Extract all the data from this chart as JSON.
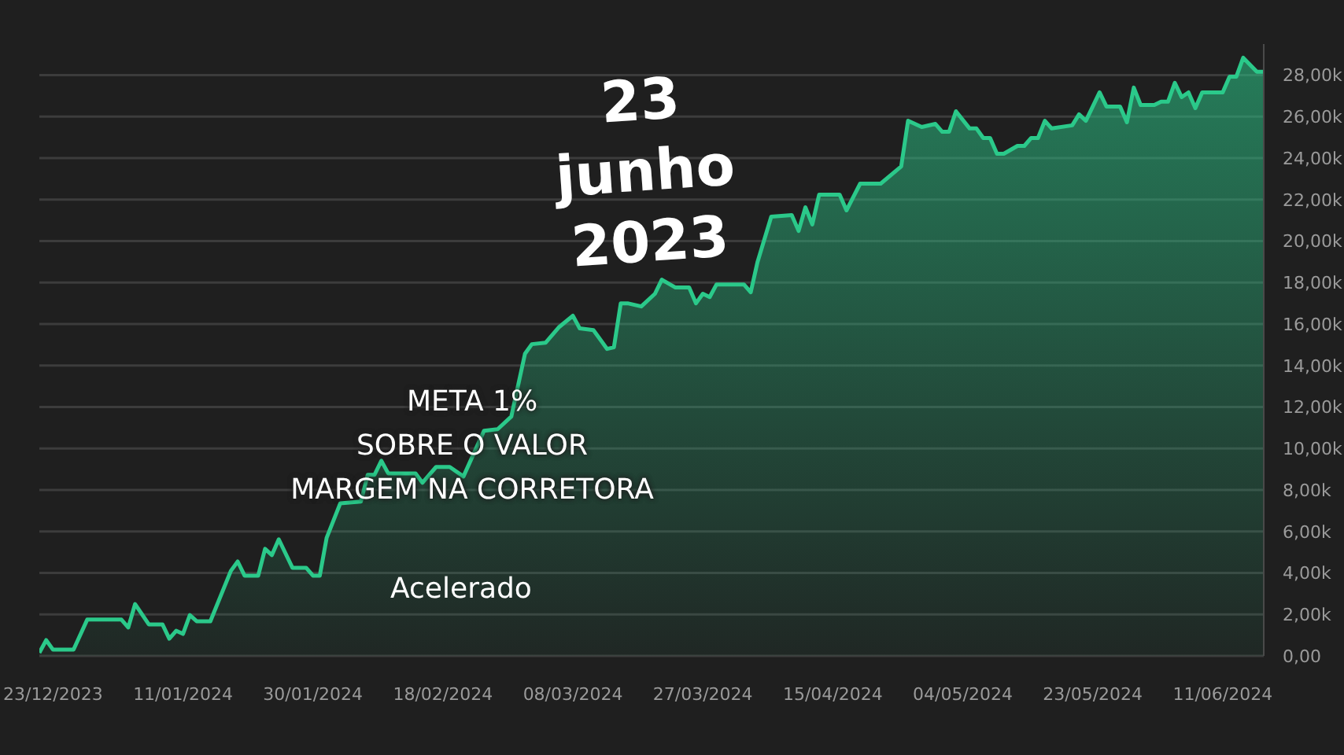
{
  "chart_data": {
    "type": "area",
    "x": [
      "2023-12-21",
      "2023-12-22",
      "2023-12-23",
      "2023-12-26",
      "2023-12-28",
      "2024-01-02",
      "2024-01-03",
      "2024-01-04",
      "2024-01-06",
      "2024-01-08",
      "2024-01-09",
      "2024-01-10",
      "2024-01-11",
      "2024-01-12",
      "2024-01-13",
      "2024-01-15",
      "2024-01-18",
      "2024-01-19",
      "2024-01-20",
      "2024-01-22",
      "2024-01-23",
      "2024-01-24",
      "2024-01-25",
      "2024-01-27",
      "2024-01-29",
      "2024-01-30",
      "2024-01-31",
      "2024-02-01",
      "2024-02-03",
      "2024-02-06",
      "2024-02-07",
      "2024-02-08",
      "2024-02-09",
      "2024-02-10",
      "2024-02-14",
      "2024-02-15",
      "2024-02-17",
      "2024-02-19",
      "2024-02-21",
      "2024-02-24",
      "2024-02-26",
      "2024-02-28",
      "2024-03-01",
      "2024-03-02",
      "2024-03-04",
      "2024-03-06",
      "2024-03-08",
      "2024-03-09",
      "2024-03-11",
      "2024-03-13",
      "2024-03-14",
      "2024-03-15",
      "2024-03-16",
      "2024-03-18",
      "2024-03-20",
      "2024-03-21",
      "2024-03-23",
      "2024-03-25",
      "2024-03-26",
      "2024-03-27",
      "2024-03-28",
      "2024-03-29",
      "2024-04-02",
      "2024-04-03",
      "2024-04-04",
      "2024-04-06",
      "2024-04-09",
      "2024-04-10",
      "2024-04-11",
      "2024-04-12",
      "2024-04-13",
      "2024-04-16",
      "2024-04-17",
      "2024-04-19",
      "2024-04-22",
      "2024-04-25",
      "2024-04-26",
      "2024-04-28",
      "2024-04-30",
      "2024-05-01",
      "2024-05-02",
      "2024-05-03",
      "2024-05-05",
      "2024-05-06",
      "2024-05-07",
      "2024-05-08",
      "2024-05-09",
      "2024-05-10",
      "2024-05-12",
      "2024-05-13",
      "2024-05-14",
      "2024-05-15",
      "2024-05-16",
      "2024-05-17",
      "2024-05-20",
      "2024-05-21",
      "2024-05-22",
      "2024-05-24",
      "2024-05-25",
      "2024-05-27",
      "2024-05-28",
      "2024-05-29",
      "2024-05-30",
      "2024-06-01",
      "2024-06-02",
      "2024-06-03",
      "2024-06-04",
      "2024-06-05",
      "2024-06-06",
      "2024-06-07",
      "2024-06-08",
      "2024-06-11",
      "2024-06-12",
      "2024-06-13",
      "2024-06-14",
      "2024-06-16",
      "2024-06-17"
    ],
    "series": [
      {
        "color": "#2bc98a",
        "values": [
          150,
          760,
          300,
          300,
          1750,
          1750,
          1370,
          2500,
          1520,
          1520,
          830,
          1210,
          1060,
          1970,
          1670,
          1670,
          4100,
          4550,
          3870,
          3870,
          5160,
          4860,
          5620,
          4250,
          4250,
          3870,
          3870,
          5690,
          7360,
          7440,
          8730,
          8730,
          9410,
          8800,
          8800,
          8350,
          9110,
          9110,
          8650,
          10850,
          10930,
          11540,
          14570,
          15030,
          15100,
          15860,
          16400,
          15790,
          15710,
          14800,
          14880,
          17000,
          17000,
          16850,
          17460,
          18140,
          17760,
          17760,
          17000,
          17460,
          17300,
          17910,
          17910,
          17530,
          19000,
          21180,
          21250,
          20490,
          21630,
          20800,
          22240,
          22240,
          21480,
          22770,
          22770,
          23600,
          25800,
          25500,
          25650,
          25270,
          25270,
          26260,
          25430,
          25430,
          24970,
          24970,
          24210,
          24210,
          24590,
          24590,
          24970,
          24970,
          25800,
          25430,
          25580,
          26110,
          25800,
          27170,
          26490,
          26490,
          25730,
          27400,
          26560,
          26560,
          26720,
          26720,
          27630,
          26940,
          27170,
          26410,
          27170,
          27170,
          27930,
          27930,
          28840,
          28160,
          28160
        ]
      }
    ],
    "xlim": [
      "2023-12-21",
      "2024-06-17"
    ],
    "xticks": [
      {
        "value": "2023-12-23",
        "label": "23/12/2023"
      },
      {
        "value": "2024-01-11",
        "label": "11/01/2024"
      },
      {
        "value": "2024-01-30",
        "label": "30/01/2024"
      },
      {
        "value": "2024-02-18",
        "label": "18/02/2024"
      },
      {
        "value": "2024-03-08",
        "label": "08/03/2024"
      },
      {
        "value": "2024-03-27",
        "label": "27/03/2024"
      },
      {
        "value": "2024-04-15",
        "label": "15/04/2024"
      },
      {
        "value": "2024-05-04",
        "label": "04/05/2024"
      },
      {
        "value": "2024-05-23",
        "label": "23/05/2024"
      },
      {
        "value": "2024-06-11",
        "label": "11/06/2024"
      }
    ],
    "ylim": [
      0,
      29500
    ],
    "yticks": [
      {
        "value": 0,
        "label": "0,00"
      },
      {
        "value": 2000,
        "label": "2,00k"
      },
      {
        "value": 4000,
        "label": "4,00k"
      },
      {
        "value": 6000,
        "label": "6,00k"
      },
      {
        "value": 8000,
        "label": "8,00k"
      },
      {
        "value": 10000,
        "label": "10,00k"
      },
      {
        "value": 12000,
        "label": "12,00k"
      },
      {
        "value": 14000,
        "label": "14,00k"
      },
      {
        "value": 16000,
        "label": "16,00k"
      },
      {
        "value": 18000,
        "label": "18,00k"
      },
      {
        "value": 20000,
        "label": "20,00k"
      },
      {
        "value": 22000,
        "label": "22,00k"
      },
      {
        "value": 24000,
        "label": "24,00k"
      },
      {
        "value": 26000,
        "label": "26,00k"
      },
      {
        "value": 28000,
        "label": "28,00k"
      }
    ],
    "grid": "y",
    "legend": false,
    "annotations": [
      "23\njunho\n2023",
      "META 1%\nSOBRE O VALOR\nMARGEM NA CORRETORA",
      "Acelerado"
    ]
  }
}
